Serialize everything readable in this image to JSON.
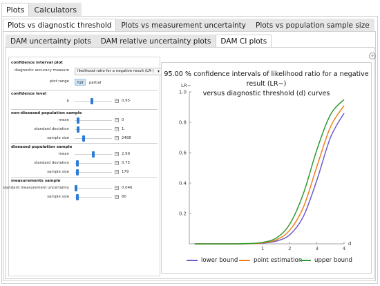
{
  "top_tabs": [
    {
      "label": "Plots",
      "active": true
    },
    {
      "label": "Calculators",
      "active": false
    }
  ],
  "plot_tabs": [
    {
      "label": "Plots vs diagnostic threshold",
      "active": true
    },
    {
      "label": "Plots vs measurement uncertainty",
      "active": false
    },
    {
      "label": "Plots vs population sample size",
      "active": false
    }
  ],
  "dam_tabs": [
    {
      "label": "DAM uncertainty plots",
      "active": false
    },
    {
      "label": "DAM relative uncertainty plots",
      "active": false
    },
    {
      "label": "DAM CI plots",
      "active": true
    }
  ],
  "controls": {
    "ci_plot": {
      "title": "confidence interval plot",
      "measure_label": "diagnostic accuracy measure",
      "measure_value": "likelihood ratio for a negative result (LR-)",
      "plot_range_label": "plot range",
      "range_full": "full",
      "range_partial": "partial"
    },
    "confidence": {
      "title": "confidence level",
      "p_label": "p",
      "p_value": "0.95",
      "p_position": 0.45
    },
    "non_diseased": {
      "title": "non-diseased population sample",
      "mean_label": "mean",
      "mean_value": "0",
      "mean_position": 0.05,
      "sd_label": "standard deviation",
      "sd_value": "1.",
      "sd_position": 0.05,
      "size_label": "sample size",
      "size_value": "2488",
      "size_position": 0.22
    },
    "diseased": {
      "title": "diseased population sample",
      "mean_label": "mean",
      "mean_value": "2.99",
      "mean_position": 0.5,
      "sd_label": "standard deviation",
      "sd_value": "0.75",
      "sd_position": 0.03,
      "size_label": "sample size",
      "size_value": "179",
      "size_position": 0.03
    },
    "measurements": {
      "title": "measurements sample",
      "smu_label": "standard measurement uncertainty",
      "smu_value": "0.046",
      "smu_position": 0.0,
      "size_label": "sample size",
      "size_value": "80",
      "size_position": 0.03
    }
  },
  "plot": {
    "title_line1": "95.00 % confidence intervals of likelihood ratio for a negative result (LR−)",
    "title_line2": "versus diagnostic threshold (d) curves"
  },
  "chart_data": {
    "type": "line",
    "ylabel": "LR−",
    "xlabel": "d",
    "xlim": [
      -1.7,
      4
    ],
    "ylim": [
      0,
      1
    ],
    "x_ticks": [
      "1",
      "2",
      "3",
      "4"
    ],
    "y_ticks": [
      "0.2",
      "0.4",
      "0.6",
      "0.8",
      "1.0"
    ],
    "x": [
      -1.5,
      0,
      0.5,
      1,
      1.5,
      2,
      2.5,
      3,
      3.5,
      4
    ],
    "series": [
      {
        "name": "lower bound",
        "color": "#6a5acd",
        "values": [
          0,
          0,
          0.001,
          0.005,
          0.018,
          0.06,
          0.18,
          0.42,
          0.7,
          0.86
        ]
      },
      {
        "name": "point estimation",
        "color": "#f07f1a",
        "values": [
          0,
          0,
          0.001,
          0.007,
          0.026,
          0.09,
          0.24,
          0.51,
          0.77,
          0.91
        ]
      },
      {
        "name": "upper bound",
        "color": "#2e9a2e",
        "values": [
          0,
          0,
          0.002,
          0.01,
          0.038,
          0.13,
          0.33,
          0.62,
          0.85,
          0.95
        ]
      }
    ],
    "grid": false,
    "legend": "bottom"
  }
}
